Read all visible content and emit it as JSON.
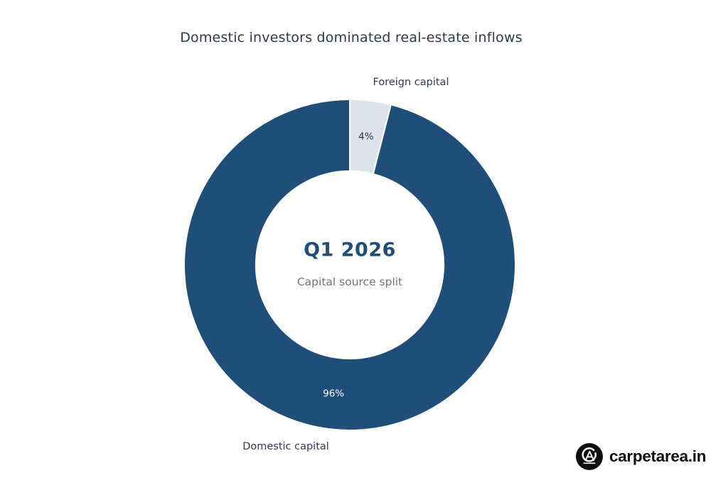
{
  "chart_data": {
    "type": "pie",
    "subtype": "donut",
    "title": "Domestic investors dominated real-estate inflows",
    "hole_ratio": 0.567,
    "start_angle_deg": 0,
    "direction": "clockwise",
    "legend": "none",
    "separator_color": "#ffffff",
    "center_label": {
      "title": "Q1 2026",
      "subtitle": "Capital source split"
    },
    "slices": [
      {
        "label": "Foreign capital",
        "value": 4,
        "pct_label": "4%",
        "color": "#dce3ed",
        "pct_label_color": "#2c3645",
        "label_position": "outside-top"
      },
      {
        "label": "Domestic capital",
        "value": 96,
        "pct_label": "96%",
        "color": "#1f4e79",
        "pct_label_color": "#ffffff",
        "label_position": "outside-bottom"
      }
    ]
  },
  "branding": {
    "logo_text": "carpetarea.in",
    "logo_bg": "#0e0e0e",
    "logo_fg": "#ffffff"
  },
  "colors": {
    "background": "#ffffff",
    "accent_blue": "#1f4e79",
    "light_slice": "#dce3ed",
    "title_text": "#2e3b4e",
    "subtitle_text": "#6e7682"
  }
}
